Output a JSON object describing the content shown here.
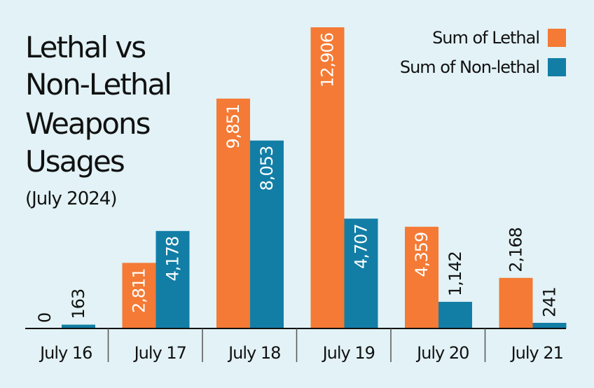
{
  "chart_data": {
    "type": "bar",
    "title_lines": [
      "Lethal vs",
      "Non-Lethal",
      "Weapons",
      "Usages"
    ],
    "subtitle": "(July 2024)",
    "categories": [
      "July 16",
      "July 17",
      "July 18",
      "July 19",
      "July 20",
      "July 21"
    ],
    "series": [
      {
        "name": "Sum of Lethal",
        "color": "#f47a35",
        "values": [
          0,
          2811,
          9851,
          12906,
          4359,
          2168
        ],
        "labels": [
          "0",
          "2,811",
          "9,851",
          "12,906",
          "4,359",
          "2,168"
        ]
      },
      {
        "name": "Sum of Non-lethal",
        "color": "#127ea6",
        "values": [
          163,
          4178,
          8053,
          4707,
          1142,
          241
        ],
        "labels": [
          "163",
          "4,178",
          "8,053",
          "4,707",
          "1,142",
          "241"
        ]
      }
    ],
    "ylim": [
      0,
      12906
    ],
    "grid": false,
    "legend": "top-right",
    "xlabel": "",
    "ylabel": ""
  }
}
